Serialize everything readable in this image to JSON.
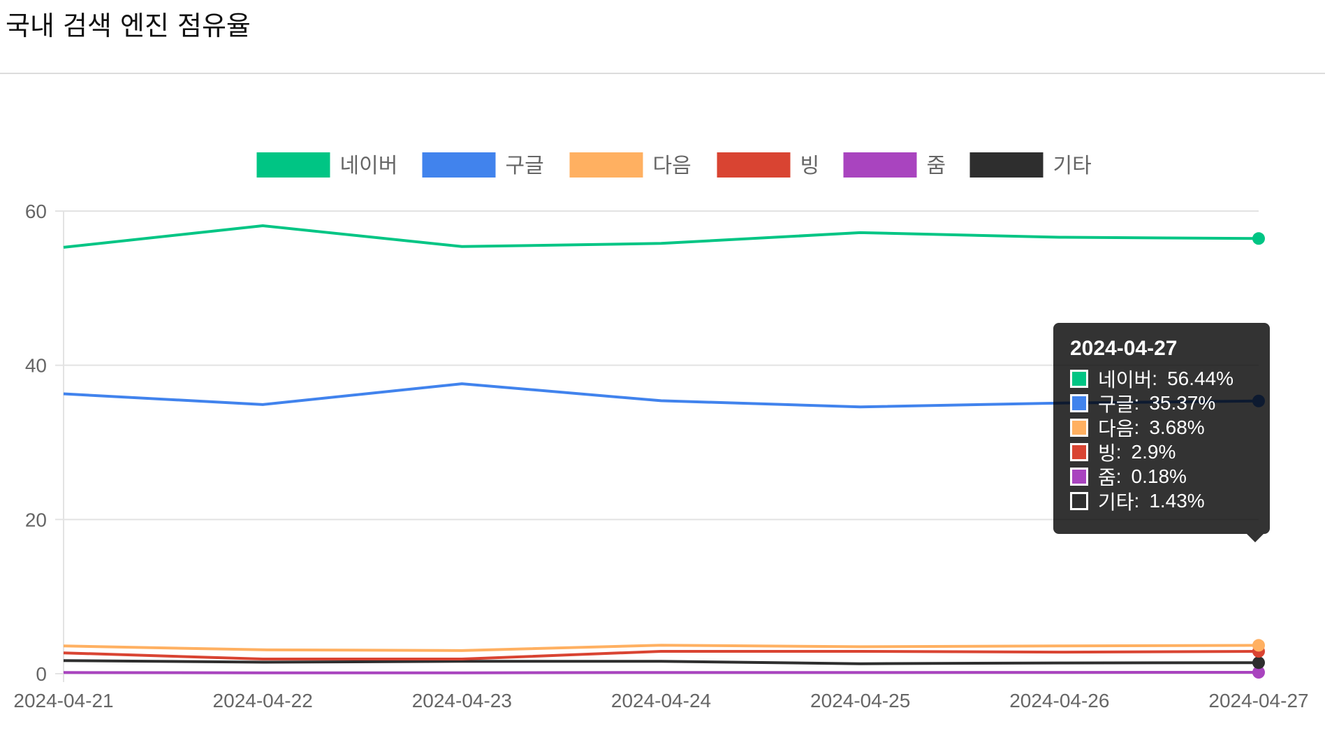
{
  "page": {
    "title": "국내 검색 엔진 점유율"
  },
  "chart_data": {
    "type": "line",
    "title": "국내 검색 엔진 점유율",
    "xlabel": "",
    "ylabel": "",
    "ylim": [
      0,
      60
    ],
    "yticks": [
      "0",
      "20",
      "40",
      "60"
    ],
    "grid": true,
    "legend_position": "top",
    "categories": [
      "2024-04-21",
      "2024-04-22",
      "2024-04-23",
      "2024-04-24",
      "2024-04-25",
      "2024-04-26",
      "2024-04-27"
    ],
    "series": [
      {
        "name": "네이버",
        "color": "#00c584",
        "values": [
          55.3,
          58.1,
          55.4,
          55.8,
          57.2,
          56.6,
          56.44
        ]
      },
      {
        "name": "구글",
        "color": "#4183ed",
        "values": [
          36.3,
          34.9,
          37.6,
          35.4,
          34.6,
          35.1,
          35.37
        ]
      },
      {
        "name": "다음",
        "color": "#ffb061",
        "values": [
          3.6,
          3.1,
          3.0,
          3.7,
          3.5,
          3.6,
          3.68
        ]
      },
      {
        "name": "빙",
        "color": "#d94432",
        "values": [
          2.7,
          1.9,
          1.9,
          2.9,
          2.9,
          2.8,
          2.9
        ]
      },
      {
        "name": "줌",
        "color": "#a944bf",
        "values": [
          0.15,
          0.12,
          0.12,
          0.16,
          0.15,
          0.17,
          0.18
        ]
      },
      {
        "name": "기타",
        "color": "#2e2e2e",
        "values": [
          1.7,
          1.5,
          1.6,
          1.6,
          1.3,
          1.4,
          1.43
        ]
      }
    ]
  },
  "tooltip": {
    "title": "2024-04-27",
    "colon": ":",
    "rows": [
      {
        "name": "네이버",
        "value": "56.44%",
        "color": "#00c584"
      },
      {
        "name": "구글",
        "value": "35.37%",
        "color": "#4183ed"
      },
      {
        "name": "다음",
        "value": "3.68%",
        "color": "#ffb061"
      },
      {
        "name": "빙",
        "value": "2.9%",
        "color": "#d94432"
      },
      {
        "name": "줌",
        "value": "0.18%",
        "color": "#a944bf"
      },
      {
        "name": "기타",
        "value": "1.43%",
        "color": "#2e2e2e"
      }
    ]
  }
}
